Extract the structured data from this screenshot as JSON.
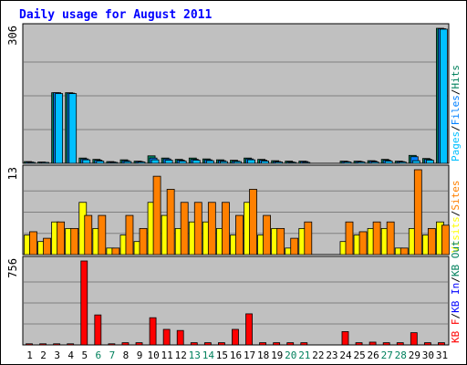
{
  "chart_data": {
    "type": "bar",
    "title": "Daily usage for August 2011",
    "colors": {
      "background": "#c0c0c0",
      "grid": "#808080",
      "title": "#0000ff",
      "pages": "#00c0ff",
      "files": "#0080ff",
      "hits": "#00805c",
      "visits": "#ffff00",
      "sites": "#ff8000",
      "kbin": "#0000ff",
      "kbout": "#00805c",
      "kbf": "#ff0000",
      "weekday_label": "#000000",
      "weekend_label": "#00805c"
    },
    "days": [
      "1",
      "2",
      "3",
      "4",
      "5",
      "6",
      "7",
      "8",
      "9",
      "10",
      "11",
      "12",
      "13",
      "14",
      "15",
      "16",
      "17",
      "18",
      "19",
      "20",
      "21",
      "22",
      "23",
      "24",
      "25",
      "26",
      "27",
      "28",
      "29",
      "30",
      "31"
    ],
    "weekend_days": [
      "6",
      "7",
      "13",
      "14",
      "20",
      "21",
      "27",
      "28"
    ],
    "panels": [
      {
        "id": "hits",
        "ymax_label": "306",
        "ylim": [
          0,
          306
        ],
        "legend": [
          {
            "text": "Pages",
            "color": "#00c0ff"
          },
          {
            "text": "/",
            "color": "#000000"
          },
          {
            "text": "Files",
            "color": "#0080ff"
          },
          {
            "text": "/",
            "color": "#000000"
          },
          {
            "text": "Hits",
            "color": "#00805c"
          }
        ],
        "series": [
          {
            "key": "hits",
            "color": "#00805c",
            "values": [
              4,
              3,
              160,
              160,
              12,
              9,
              4,
              8,
              5,
              17,
              12,
              9,
              12,
              10,
              8,
              7,
              12,
              9,
              6,
              5,
              5,
              0,
              0,
              5,
              5,
              6,
              9,
              5,
              18,
              11,
              306
            ]
          },
          {
            "key": "files",
            "color": "#0080ff",
            "values": [
              3,
              2,
              160,
              159,
              10,
              7,
              3,
              6,
              4,
              12,
              10,
              7,
              9,
              8,
              6,
              5,
              10,
              7,
              4,
              3,
              4,
              0,
              0,
              4,
              4,
              5,
              7,
              4,
              15,
              9,
              305
            ]
          },
          {
            "key": "pages",
            "color": "#00c0ff",
            "values": [
              2,
              2,
              158,
              158,
              8,
              5,
              2,
              4,
              3,
              8,
              7,
              5,
              7,
              6,
              4,
              4,
              8,
              5,
              3,
              2,
              2,
              0,
              0,
              3,
              3,
              3,
              5,
              3,
              6,
              7,
              304
            ]
          }
        ]
      },
      {
        "id": "visits",
        "ymax_label": "13",
        "ylim": [
          0,
          13
        ],
        "legend": [
          {
            "text": "Visits",
            "color": "#ffff00"
          },
          {
            "text": "/",
            "color": "#000000"
          },
          {
            "text": "Sites",
            "color": "#ff8000"
          }
        ],
        "series": [
          {
            "key": "visits",
            "color": "#ffff00",
            "values": [
              3,
              2,
              5,
              4,
              8,
              4,
              1,
              3,
              2,
              8,
              6,
              4,
              5,
              5,
              4,
              3,
              8,
              3,
              4,
              1,
              4,
              0,
              0,
              2,
              3,
              4,
              4,
              1,
              4,
              3,
              5
            ]
          },
          {
            "key": "sites",
            "color": "#ff8000",
            "values": [
              3.5,
              2.5,
              5,
              4,
              6,
              6,
              1,
              6,
              4,
              12,
              10,
              8,
              8,
              8,
              8,
              6,
              10,
              6,
              4,
              2.5,
              5,
              0,
              0,
              5,
              3.5,
              5,
              5,
              1,
              13,
              4,
              4.5
            ]
          }
        ]
      },
      {
        "id": "kbytes",
        "ymax_label": "756",
        "ylim": [
          0,
          756
        ],
        "legend": [
          {
            "text": "KB F",
            "color": "#ff0000"
          },
          {
            "text": "/",
            "color": "#000000"
          },
          {
            "text": "KB In",
            "color": "#0000ff"
          },
          {
            "text": "/",
            "color": "#000000"
          },
          {
            "text": "KB Out",
            "color": "#00805c"
          }
        ],
        "series": [
          {
            "key": "kbf",
            "color": "#ff0000",
            "values": [
              10,
              10,
              10,
              10,
              756,
              270,
              10,
              20,
              20,
              245,
              140,
              130,
              20,
              20,
              20,
              140,
              280,
              20,
              20,
              20,
              20,
              0,
              0,
              120,
              20,
              25,
              20,
              20,
              110,
              20,
              20
            ]
          }
        ]
      }
    ]
  }
}
